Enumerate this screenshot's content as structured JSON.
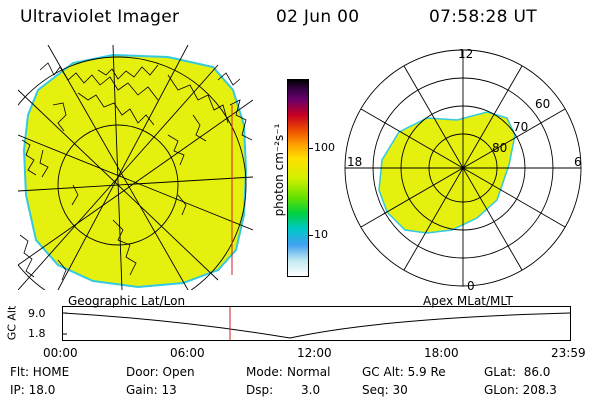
{
  "header": {
    "title": "Ultraviolet Imager",
    "date": "02 Jun 00",
    "time": "07:58:28 UT"
  },
  "colors": {
    "aurora_fill": "#e6f00f",
    "aurora_edge": "#33c9e0",
    "background": "#ffffff",
    "lines": "#000000",
    "marker": "#cc2222"
  },
  "colorbar": {
    "unit_label": "photon cm⁻²s⁻¹",
    "ticks": [
      "100",
      "10"
    ]
  },
  "geo_panel": {
    "label": "Geographic Lat/Lon"
  },
  "polar_panel": {
    "label": "Apex MLat/MLT",
    "mlt_labels": [
      "12",
      "18",
      "6",
      "0"
    ],
    "lat_labels": [
      "60",
      "70",
      "80"
    ]
  },
  "altitude_plot": {
    "ylabel": "GC Alt",
    "yticks": [
      "9.0",
      "1.8"
    ],
    "xticks": [
      "00:00",
      "06:00",
      "12:00",
      "18:00",
      "23:59"
    ]
  },
  "info": {
    "flt": "Flt: HOME",
    "ip": "IP: 18.0",
    "door": "Door: Open",
    "gain": "Gain: 13",
    "mode_label": "Mode:",
    "mode_value": "Normal",
    "dsp_label": "Dsp:",
    "dsp_value": "3.0",
    "gcalt": "GC Alt: 5.9 Re",
    "seq": "Seq: 30",
    "glat": "GLat:  86.0",
    "glon": "GLon: 208.3"
  }
}
